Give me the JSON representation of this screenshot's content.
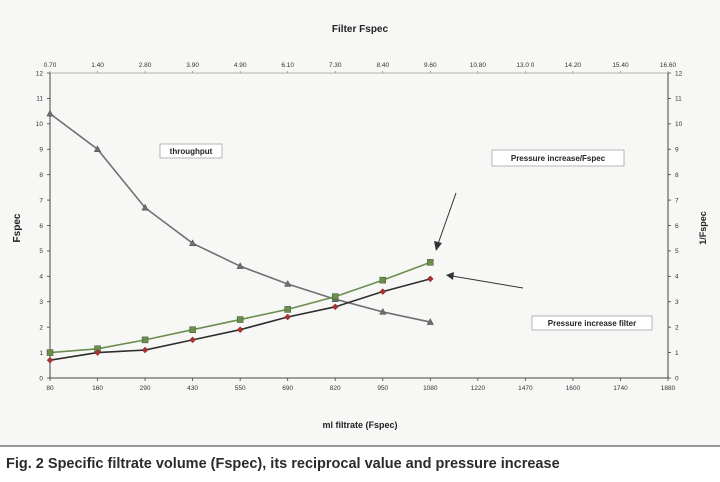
{
  "caption": "Fig. 2  Specific filtrate volume (Fspec), its reciprocal value and pressure increase",
  "chart_data": {
    "type": "line",
    "title": "Filter Fspec",
    "xlabel": "ml filtrate (Fspec)",
    "ylabel_left": "Fspec",
    "ylabel_right": "1/Fspec",
    "ylim": [
      0,
      12
    ],
    "y_ticks": [
      "0",
      "1",
      "2",
      "3",
      "4",
      "5",
      "6",
      "7",
      "8",
      "9",
      "10",
      "11",
      "12"
    ],
    "x_bottom_ticks": [
      "80",
      "160",
      "290",
      "430",
      "550",
      "690",
      "820",
      "950",
      "1080",
      "1220",
      "1470",
      "1600",
      "1740",
      "1880"
    ],
    "x_top_ticks": [
      "0.70",
      "1.40",
      "2.80",
      "3.90",
      "4.90",
      "6.10",
      "7.30",
      "8.40",
      "9.60",
      "10.80",
      "13.0 0",
      "14.20",
      "15.40",
      "16.60"
    ],
    "series": [
      {
        "name": "throughput",
        "color": "#707070",
        "marker": "triangle",
        "x": [
          "80",
          "160",
          "290",
          "430",
          "550",
          "690",
          "820",
          "950",
          "1080"
        ],
        "values": [
          10.4,
          9.0,
          6.7,
          5.3,
          4.4,
          3.7,
          3.1,
          2.6,
          2.2
        ]
      },
      {
        "name": "Pressure increase/Fspec",
        "color": "#6b8e4e",
        "marker": "square",
        "x": [
          "80",
          "160",
          "290",
          "430",
          "550",
          "690",
          "820",
          "950",
          "1080"
        ],
        "values": [
          1.0,
          1.15,
          1.5,
          1.9,
          2.3,
          2.7,
          3.2,
          3.85,
          4.55
        ]
      },
      {
        "name": "Pressure increase filter",
        "color": "#2e2e2e",
        "marker": "diamond",
        "marker_color": "#b03030",
        "x": [
          "80",
          "160",
          "290",
          "430",
          "550",
          "690",
          "820",
          "950",
          "1080"
        ],
        "values": [
          0.7,
          1.0,
          1.1,
          1.5,
          1.9,
          2.4,
          2.8,
          3.4,
          3.9
        ]
      }
    ],
    "grid": false,
    "annotations": [
      "throughput",
      "Pressure increase/Fspec",
      "Pressure increase filter"
    ]
  }
}
